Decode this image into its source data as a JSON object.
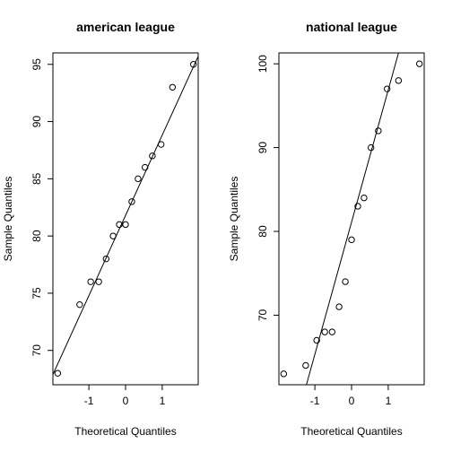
{
  "chart_data": [
    {
      "type": "scatter",
      "title": "american league",
      "xlabel": "Theoretical Quantiles",
      "ylabel": "Sample Quantiles",
      "xlim": [
        -1.98,
        1.98
      ],
      "ylim": [
        67.0,
        96.0
      ],
      "xticks": [
        -1,
        0,
        1
      ],
      "yticks": [
        70,
        75,
        80,
        85,
        90,
        95
      ],
      "points": {
        "x": [
          -1.85,
          -1.25,
          -0.95,
          -0.73,
          -0.53,
          -0.34,
          -0.17,
          0.0,
          0.17,
          0.34,
          0.53,
          0.73,
          0.97,
          1.28,
          1.85
        ],
        "y": [
          68,
          74,
          76,
          76,
          78,
          80,
          81,
          81,
          83,
          85,
          86,
          87,
          88,
          93,
          95
        ]
      },
      "qq_line": {
        "x": [
          -1.98,
          1.98
        ],
        "y": [
          67.9,
          95.7
        ]
      }
    },
    {
      "type": "scatter",
      "title": "national league",
      "xlabel": "Theoretical Quantiles",
      "ylabel": "Sample Quantiles",
      "xlim": [
        -1.98,
        1.98
      ],
      "ylim": [
        61.7,
        101.3
      ],
      "xticks": [
        -1,
        0,
        1
      ],
      "yticks": [
        70,
        80,
        90,
        100
      ],
      "points": {
        "x": [
          -1.85,
          -1.25,
          -0.95,
          -0.73,
          -0.53,
          -0.34,
          -0.17,
          0.0,
          0.17,
          0.34,
          0.53,
          0.73,
          0.97,
          1.28,
          1.85
        ],
        "y": [
          63,
          64,
          67,
          68,
          68,
          71,
          74,
          79,
          83,
          84,
          90,
          92,
          97,
          98,
          100
        ]
      },
      "qq_line": {
        "x": [
          -1.23,
          1.28
        ],
        "y": [
          61.7,
          101.3
        ]
      }
    }
  ]
}
